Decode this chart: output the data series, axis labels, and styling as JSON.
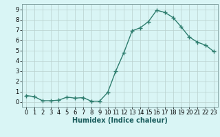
{
  "x": [
    0,
    1,
    2,
    3,
    4,
    5,
    6,
    7,
    8,
    9,
    10,
    11,
    12,
    13,
    14,
    15,
    16,
    17,
    18,
    19,
    20,
    21,
    22,
    23
  ],
  "y": [
    0.6,
    0.5,
    0.1,
    0.1,
    0.15,
    0.45,
    0.35,
    0.4,
    0.05,
    0.05,
    0.9,
    3.0,
    4.8,
    6.9,
    7.2,
    7.8,
    8.9,
    8.7,
    8.2,
    7.3,
    6.3,
    5.8,
    5.5,
    4.9
  ],
  "line_color": "#2e7d6e",
  "marker": "+",
  "marker_size": 4.0,
  "bg_color": "#d9f5f5",
  "grid_color": "#b8d0ce",
  "xlabel": "Humidex (Indice chaleur)",
  "xlim": [
    -0.5,
    23.5
  ],
  "ylim": [
    -0.5,
    9.5
  ],
  "yticks": [
    0,
    1,
    2,
    3,
    4,
    5,
    6,
    7,
    8,
    9
  ],
  "xticks": [
    0,
    1,
    2,
    3,
    4,
    5,
    6,
    7,
    8,
    9,
    10,
    11,
    12,
    13,
    14,
    15,
    16,
    17,
    18,
    19,
    20,
    21,
    22,
    23
  ],
  "xlabel_fontsize": 7.0,
  "tick_fontsize": 6.0,
  "line_width": 1.0,
  "marker_color": "#2e7d6e"
}
